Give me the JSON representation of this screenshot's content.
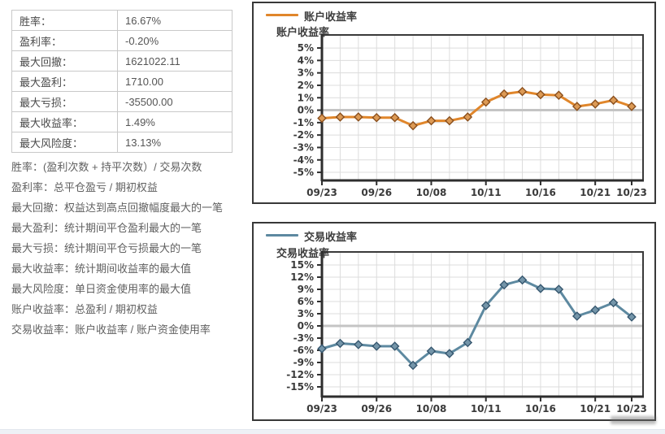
{
  "stats_table": {
    "rows": [
      {
        "label": "胜率：",
        "value": "16.67%"
      },
      {
        "label": "盈利率：",
        "value": "-0.20%"
      },
      {
        "label": "最大回撤：",
        "value": "1621022.11"
      },
      {
        "label": "最大盈利：",
        "value": "1710.00"
      },
      {
        "label": "最大亏损：",
        "value": "-35500.00"
      },
      {
        "label": "最大收益率：",
        "value": "1.49%"
      },
      {
        "label": "最大风险度：",
        "value": "13.13%"
      }
    ]
  },
  "definitions": [
    "胜率：(盈利次数 + 持平次数）/ 交易次数",
    "盈利率：总平仓盈亏 / 期初权益",
    "最大回撤：权益达到高点回撤幅度最大的一笔",
    "最大盈利：统计期间平仓盈利最大的一笔",
    "最大亏损：统计期间平仓亏损最大的一笔",
    "最大收益率：统计期间收益率的最大值",
    "最大风险度：单日资金使用率的最大值",
    "账户收益率：总盈利 / 期初权益",
    "交易收益率：账户收益率 / 账户资金使用率"
  ],
  "chart_data": [
    {
      "type": "line",
      "title": "账户收益率",
      "legend": "账户收益率",
      "ylabel": "账户收益率",
      "unit": "%",
      "n_points": 18,
      "values": [
        -0.65,
        -0.55,
        -0.55,
        -0.6,
        -0.6,
        -1.25,
        -0.85,
        -0.85,
        -0.55,
        0.65,
        1.3,
        1.5,
        1.25,
        1.2,
        0.3,
        0.5,
        0.8,
        0.3
      ],
      "x_tick_labels": [
        "09/23",
        "09/26",
        "10/08",
        "10/11",
        "10/16",
        "10/21",
        "10/23"
      ],
      "x_tick_indices": [
        0,
        3,
        6,
        9,
        12,
        15,
        17
      ],
      "yticks": [
        5,
        4,
        3,
        2,
        1,
        0,
        -1,
        -2,
        -3,
        -4,
        -5
      ],
      "ytick_suffix": "%",
      "ylim": [
        -5.65,
        6.05
      ],
      "grid": true,
      "legend_position": "top-left",
      "line_color": "#e0862b",
      "marker": "diamond",
      "marker_fill": "#dc9a55",
      "marker_stroke": "#8a4f1d"
    },
    {
      "type": "line",
      "title": "交易收益率",
      "legend": "交易收益率",
      "ylabel": "交易收益率",
      "unit": "%",
      "n_points": 18,
      "values": [
        -5.6,
        -4.3,
        -4.6,
        -5.0,
        -5.0,
        -9.7,
        -6.2,
        -6.8,
        -4.1,
        5.0,
        10.1,
        11.3,
        9.2,
        9.0,
        2.4,
        3.9,
        5.7,
        2.2
      ],
      "x_tick_labels": [
        "09/23",
        "09/26",
        "10/08",
        "10/11",
        "10/16",
        "10/21",
        "10/23"
      ],
      "x_tick_indices": [
        0,
        3,
        6,
        9,
        12,
        15,
        17
      ],
      "yticks": [
        15,
        12,
        9,
        6,
        3,
        0,
        -3,
        -6,
        -9,
        -12,
        -15
      ],
      "ytick_suffix": "%",
      "ylim": [
        -17.4,
        18.2
      ],
      "grid": true,
      "legend_position": "top-left",
      "line_color": "#5d89a0",
      "marker": "diamond",
      "marker_fill": "#7495a9",
      "marker_stroke": "#35566e"
    }
  ],
  "colors": {
    "panel_border": "#383838",
    "plot_border": "#3a3a3a",
    "grid_line": "#dcdcdc",
    "zero_line": "#c4c4c4",
    "table_border": "#c9c9c9",
    "text_primary": "#4a4a4a",
    "text_secondary": "#5f5f5f"
  }
}
